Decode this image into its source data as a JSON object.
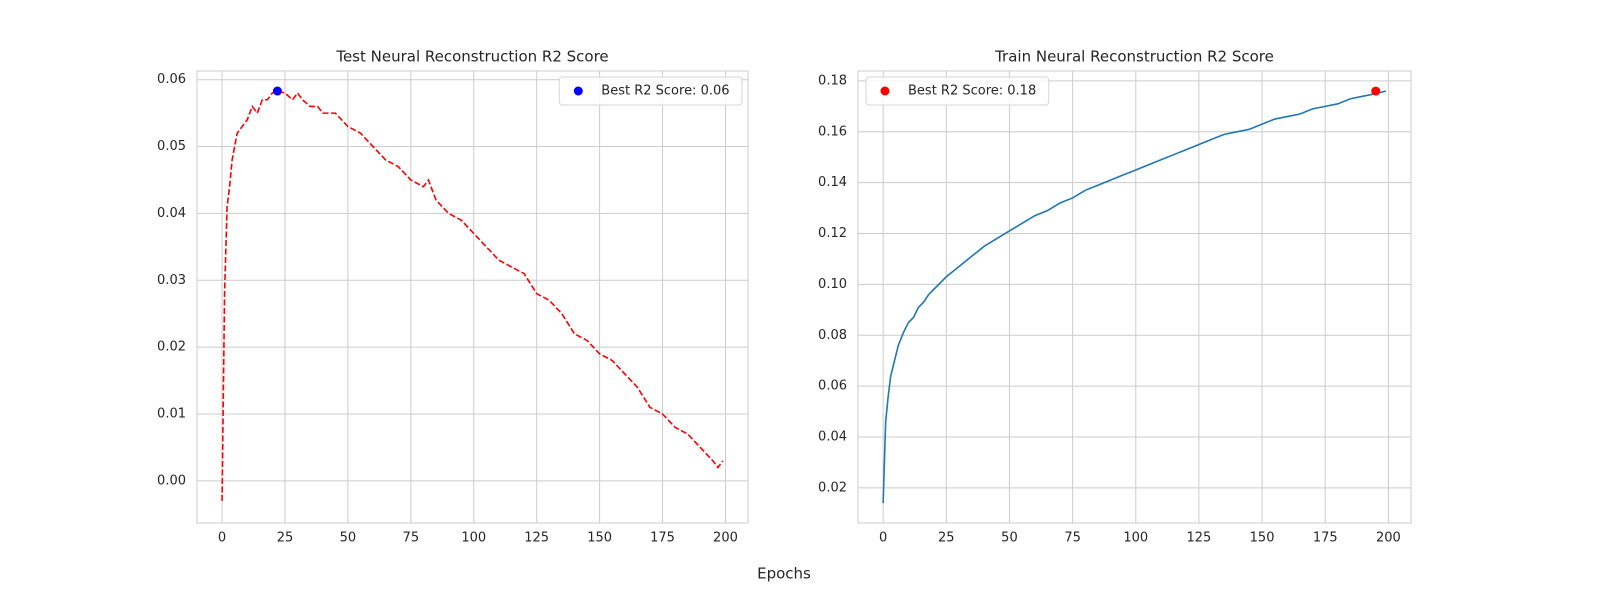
{
  "x_label": "Epochs",
  "chart_data": [
    {
      "type": "line",
      "title": "Test Neural Reconstruction R2 Score",
      "xlim": [
        -9.95,
        208.95
      ],
      "ylim": [
        -0.0063,
        0.0613
      ],
      "xticks": [
        0,
        25,
        50,
        75,
        100,
        125,
        150,
        175,
        200
      ],
      "yticks": [
        {
          "value": 0,
          "label": "0.00"
        },
        0.01,
        0.02,
        0.03,
        0.04,
        0.05,
        0.06
      ],
      "grid": true,
      "legend": "upper right",
      "series": [
        {
          "type": "line",
          "color": "#ff0000",
          "dashed": true,
          "x": [
            0,
            1,
            2,
            3,
            4,
            5,
            6,
            8,
            10,
            12,
            14,
            16,
            18,
            20,
            22,
            25,
            28,
            30,
            32,
            35,
            38,
            40,
            45,
            50,
            55,
            60,
            65,
            70,
            75,
            80,
            82,
            85,
            90,
            95,
            100,
            105,
            110,
            115,
            120,
            125,
            130,
            135,
            140,
            145,
            150,
            155,
            160,
            165,
            170,
            175,
            180,
            185,
            190,
            195,
            197,
            199
          ],
          "values": [
            -0.003,
            0.028,
            0.041,
            0.044,
            0.048,
            0.05,
            0.052,
            0.053,
            0.054,
            0.056,
            0.055,
            0.057,
            0.057,
            0.058,
            0.0583,
            0.058,
            0.057,
            0.058,
            0.057,
            0.056,
            0.056,
            0.055,
            0.055,
            0.053,
            0.052,
            0.05,
            0.048,
            0.047,
            0.045,
            0.044,
            0.045,
            0.042,
            0.04,
            0.039,
            0.037,
            0.035,
            0.033,
            0.032,
            0.031,
            0.028,
            0.027,
            0.025,
            0.022,
            0.021,
            0.019,
            0.018,
            0.016,
            0.014,
            0.011,
            0.01,
            0.008,
            0.007,
            0.005,
            0.003,
            0.002,
            0.003
          ]
        },
        {
          "type": "scatter",
          "name": "Best R2 Score: 0.06",
          "color": "#0000ff",
          "x": [
            22
          ],
          "values": [
            0.0583
          ]
        }
      ]
    },
    {
      "type": "line",
      "title": "Train Neural Reconstruction R2 Score",
      "xlim": [
        -9.95,
        208.95
      ],
      "ylim": [
        0.0062,
        0.1839
      ],
      "xticks": [
        0,
        25,
        50,
        75,
        100,
        125,
        150,
        175,
        200
      ],
      "yticks": [
        0.02,
        0.04,
        0.06,
        0.08,
        {
          "value": 0.1,
          "label": "0.10"
        },
        0.12,
        0.14,
        0.16,
        0.18
      ],
      "grid": true,
      "legend": "upper left",
      "series": [
        {
          "type": "line",
          "color": "#1f77b4",
          "dashed": false,
          "x": [
            0,
            1,
            2,
            3,
            4,
            5,
            6,
            8,
            10,
            12,
            14,
            16,
            18,
            20,
            25,
            30,
            35,
            40,
            45,
            50,
            55,
            60,
            65,
            70,
            75,
            80,
            85,
            90,
            95,
            100,
            105,
            110,
            115,
            120,
            125,
            130,
            135,
            140,
            145,
            150,
            155,
            160,
            165,
            170,
            175,
            180,
            185,
            190,
            195,
            199
          ],
          "values": [
            0.014,
            0.046,
            0.056,
            0.064,
            0.068,
            0.072,
            0.076,
            0.081,
            0.085,
            0.087,
            0.091,
            0.093,
            0.096,
            0.098,
            0.103,
            0.107,
            0.111,
            0.115,
            0.118,
            0.121,
            0.124,
            0.127,
            0.129,
            0.132,
            0.134,
            0.137,
            0.139,
            0.141,
            0.143,
            0.145,
            0.147,
            0.149,
            0.151,
            0.153,
            0.155,
            0.157,
            0.159,
            0.16,
            0.161,
            0.163,
            0.165,
            0.166,
            0.167,
            0.169,
            0.17,
            0.171,
            0.173,
            0.174,
            0.175,
            0.176
          ]
        },
        {
          "type": "scatter",
          "name": "Best R2 Score: 0.18",
          "color": "#ff0000",
          "x": [
            195
          ],
          "values": [
            0.176
          ]
        }
      ]
    }
  ]
}
